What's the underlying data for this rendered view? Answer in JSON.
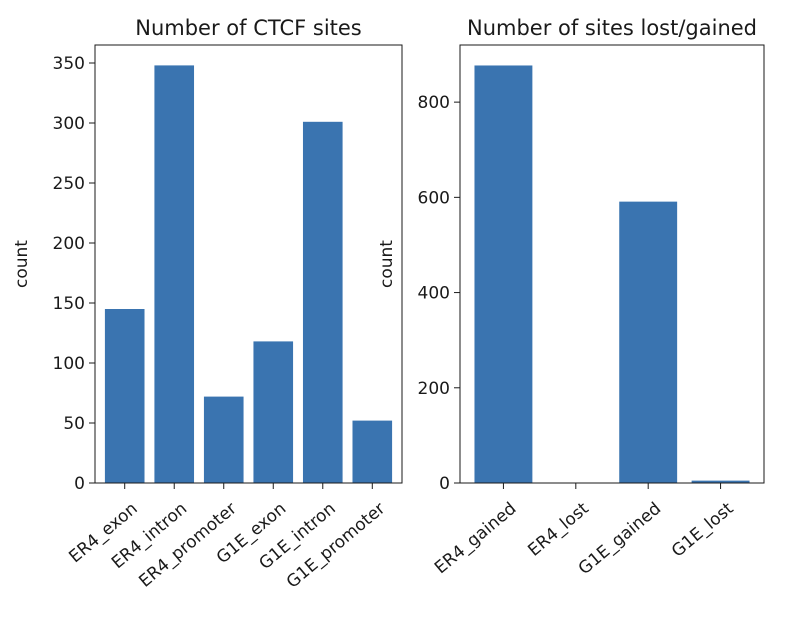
{
  "chart_data": [
    {
      "type": "bar",
      "title": "Number of CTCF sites",
      "xlabel": "",
      "ylabel": "count",
      "categories": [
        "ER4_exon",
        "ER4_intron",
        "ER4_promoter",
        "G1E_exon",
        "G1E_intron",
        "G1E_promoter"
      ],
      "values": [
        145,
        348,
        72,
        118,
        301,
        52
      ],
      "ylim": [
        0,
        365
      ],
      "yticks": [
        0,
        50,
        100,
        150,
        200,
        250,
        300,
        350
      ],
      "color": "#3a74b0",
      "grid": false
    },
    {
      "type": "bar",
      "title": "Number of sites lost/gained",
      "xlabel": "",
      "ylabel": "count",
      "categories": [
        "ER4_gained",
        "ER4_lost",
        "G1E_gained",
        "G1E_lost"
      ],
      "values": [
        877,
        0,
        591,
        5
      ],
      "ylim": [
        0,
        920
      ],
      "yticks": [
        0,
        200,
        400,
        600,
        800
      ],
      "color": "#3a74b0",
      "grid": false
    }
  ]
}
